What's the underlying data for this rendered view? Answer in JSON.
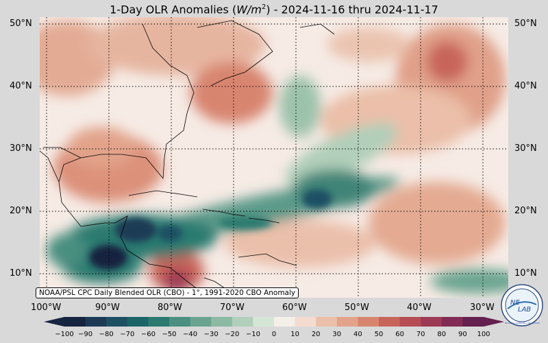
{
  "title": {
    "prefix": "1-Day OLR Anomalies (",
    "unit": "W/m",
    "exp": "2",
    "suffix": ") - 2024-11-16 thru 2024-11-17"
  },
  "lat_labels": [
    "50°N",
    "40°N",
    "30°N",
    "20°N",
    "10°N"
  ],
  "lon_labels": [
    "100°W",
    "90°W",
    "80°W",
    "70°W",
    "60°W",
    "50°W",
    "40°W",
    "30°W"
  ],
  "credit": "NOAA/PSL CPC Daily Blended OLR (CBO) - 1°, 1991-2020 CBO Anomaly",
  "colorbar": {
    "ticks": [
      "−100",
      "−90",
      "−80",
      "−70",
      "−60",
      "−50",
      "−40",
      "−30",
      "−20",
      "−10",
      "0",
      "10",
      "20",
      "30",
      "40",
      "50",
      "60",
      "70",
      "80",
      "90",
      "100"
    ],
    "colors": [
      "#17243f",
      "#1c3a55",
      "#1e5063",
      "#1b6468",
      "#2a7a70",
      "#4a8f80",
      "#6aa491",
      "#8cb9a3",
      "#b1cfba",
      "#d6e6d6",
      "#f4efe9",
      "#f3dccf",
      "#ebbfa9",
      "#e2a38a",
      "#d88570",
      "#c8655a",
      "#b64d55",
      "#9d3a55",
      "#822c55",
      "#64204f"
    ]
  },
  "logo": {
    "text_top": "NE",
    "text_mid": "LAB",
    "arc_text": "PHYSICAL SCIENCES LABORATORY"
  }
}
